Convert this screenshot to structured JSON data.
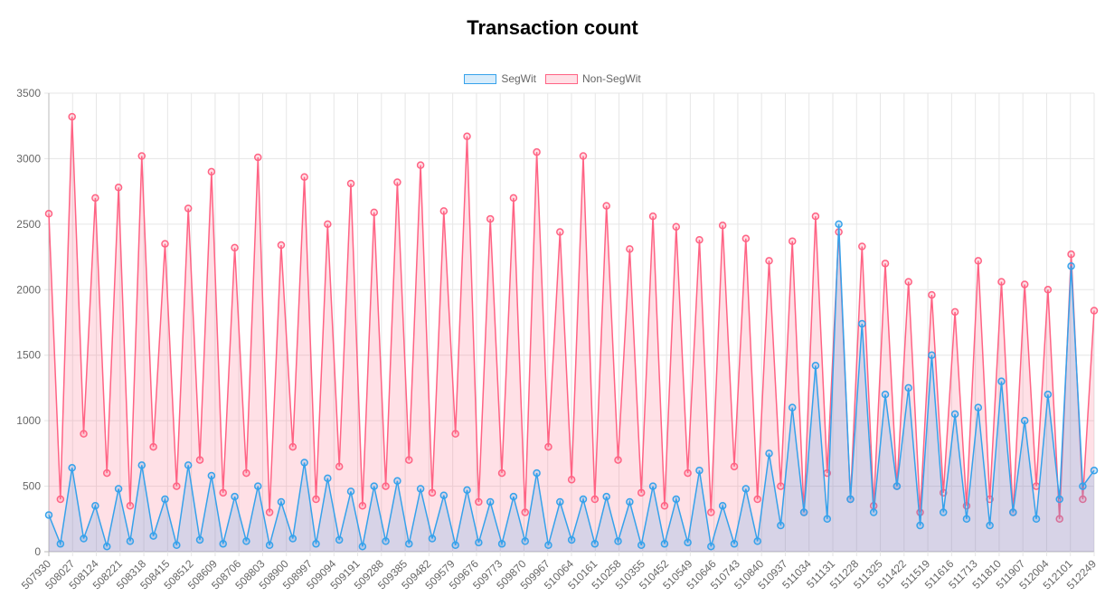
{
  "chart_data": {
    "type": "line",
    "title": "Transaction count",
    "xlabel": "",
    "ylabel": "",
    "ylim": [
      0,
      3500
    ],
    "y_ticks": [
      "0",
      "500",
      "1000",
      "1500",
      "2000",
      "2500",
      "3000",
      "3500"
    ],
    "x_tick_labels": [
      "507930",
      "508027",
      "508124",
      "508221",
      "508318",
      "508415",
      "508512",
      "508609",
      "508706",
      "508803",
      "508900",
      "508997",
      "509094",
      "509191",
      "509288",
      "509385",
      "509482",
      "509579",
      "509676",
      "509773",
      "509870",
      "509967",
      "510064",
      "510161",
      "510258",
      "510355",
      "510452",
      "510549",
      "510646",
      "510743",
      "510840",
      "510937",
      "511034",
      "511131",
      "511228",
      "511325",
      "511422",
      "511519",
      "511616",
      "511713",
      "511810",
      "511907",
      "512004",
      "512101",
      "512249"
    ],
    "xlim": [
      507930,
      512249
    ],
    "grid": true,
    "legend_position": "top",
    "x": [
      507930,
      507978,
      508026,
      508074,
      508122,
      508170,
      508218,
      508266,
      508314,
      508362,
      508410,
      508458,
      508506,
      508554,
      508602,
      508650,
      508698,
      508746,
      508794,
      508842,
      508890,
      508938,
      508986,
      509034,
      509082,
      509130,
      509178,
      509226,
      509274,
      509322,
      509370,
      509418,
      509466,
      509514,
      509562,
      509610,
      509658,
      509706,
      509754,
      509802,
      509850,
      509898,
      509946,
      509994,
      510042,
      510090,
      510138,
      510186,
      510234,
      510282,
      510330,
      510378,
      510426,
      510474,
      510522,
      510570,
      510618,
      510666,
      510714,
      510762,
      510810,
      510858,
      510906,
      510954,
      511002,
      511050,
      511098,
      511146,
      511194,
      511242,
      511290,
      511338,
      511386,
      511434,
      511482,
      511530,
      511578,
      511626,
      511674,
      511722,
      511770,
      511818,
      511866,
      511914,
      511962,
      512010,
      512058,
      512106,
      512154,
      512202,
      512249
    ],
    "series": [
      {
        "name": "SegWit",
        "color": "#36a2eb",
        "fill": "rgba(54,162,235,0.2)",
        "values": [
          280,
          60,
          640,
          100,
          350,
          40,
          480,
          80,
          660,
          120,
          400,
          50,
          660,
          90,
          580,
          60,
          420,
          80,
          500,
          50,
          380,
          100,
          680,
          60,
          560,
          90,
          460,
          40,
          500,
          80,
          540,
          60,
          480,
          100,
          430,
          50,
          470,
          70,
          380,
          60,
          420,
          80,
          600,
          50,
          380,
          90,
          400,
          60,
          420,
          80,
          380,
          50,
          500,
          60,
          400,
          70,
          620,
          40,
          350,
          60,
          480,
          80,
          750,
          200,
          1100,
          300,
          1420,
          250,
          2500,
          400,
          1740,
          300,
          1200,
          500,
          1250,
          200,
          1500,
          300,
          1050,
          250,
          1100,
          200,
          1300,
          300,
          1000,
          250,
          1200,
          400,
          2180,
          500,
          620
        ]
      },
      {
        "name": "Non-SegWit",
        "color": "#ff6384",
        "fill": "rgba(255,99,132,0.2)",
        "values": [
          2580,
          400,
          3320,
          900,
          2700,
          600,
          2780,
          350,
          3020,
          800,
          2350,
          500,
          2620,
          700,
          2900,
          450,
          2320,
          600,
          3010,
          300,
          2340,
          800,
          2860,
          400,
          2500,
          650,
          2810,
          350,
          2590,
          500,
          2820,
          700,
          2950,
          450,
          2600,
          900,
          3170,
          380,
          2540,
          600,
          2700,
          300,
          3050,
          800,
          2440,
          550,
          3020,
          400,
          2640,
          700,
          2310,
          450,
          2560,
          350,
          2480,
          600,
          2380,
          300,
          2490,
          650,
          2390,
          400,
          2220,
          500,
          2370,
          300,
          2560,
          600,
          2440,
          400,
          2330,
          350,
          2200,
          500,
          2060,
          300,
          1960,
          450,
          1830,
          350,
          2220,
          400,
          2060,
          300,
          2040,
          500,
          2000,
          250,
          2270,
          400,
          1840
        ]
      }
    ]
  }
}
